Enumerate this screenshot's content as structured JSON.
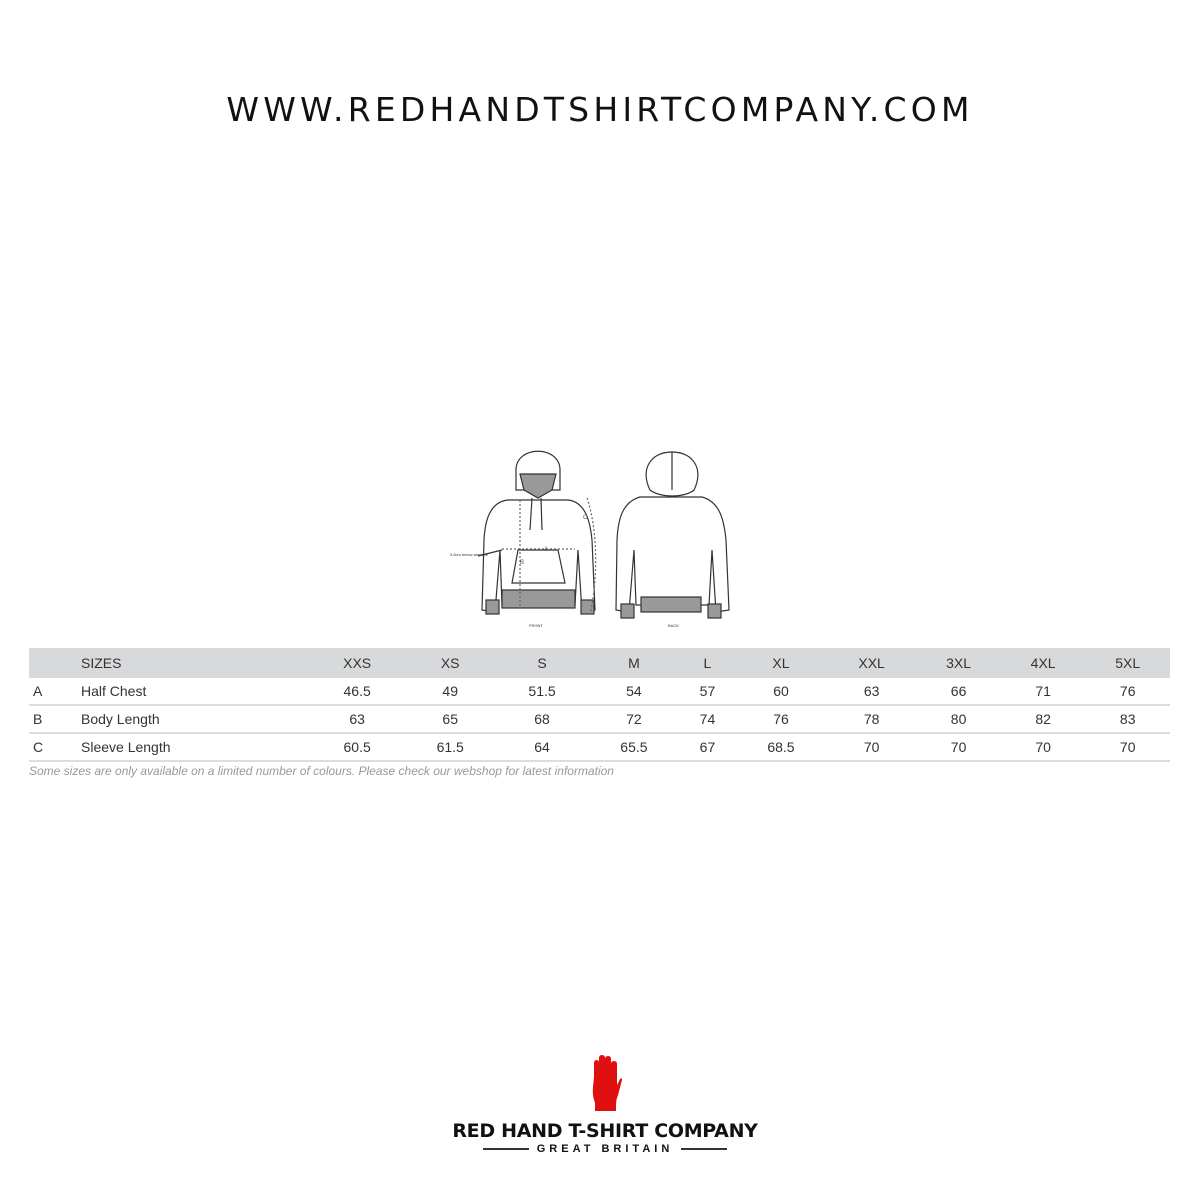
{
  "header": {
    "site_url": "WWW.REDHANDTSHIRTCOMPANY.COM"
  },
  "illustration": {
    "front_label": "FRONT",
    "back_label": "BACK",
    "armhole_note": "3.5cm below armhole",
    "marker_a": "A",
    "marker_b": "B",
    "marker_c": "C"
  },
  "table": {
    "header_label": "SIZES",
    "sizes": [
      "XXS",
      "XS",
      "S",
      "M",
      "L",
      "XL",
      "XXL",
      "3XL",
      "4XL",
      "5XL"
    ],
    "rows": [
      {
        "code": "A",
        "label": "Half Chest",
        "values": [
          "46.5",
          "49",
          "51.5",
          "54",
          "57",
          "60",
          "63",
          "66",
          "71",
          "76"
        ]
      },
      {
        "code": "B",
        "label": "Body Length",
        "values": [
          "63",
          "65",
          "68",
          "72",
          "74",
          "76",
          "78",
          "80",
          "82",
          "83"
        ]
      },
      {
        "code": "C",
        "label": "Sleeve Length",
        "values": [
          "60.5",
          "61.5",
          "64",
          "65.5",
          "67",
          "68.5",
          "70",
          "70",
          "70",
          "70"
        ]
      }
    ]
  },
  "note": "Some sizes are only available on a limited number of colours. Please check our webshop for latest information",
  "logo": {
    "name": "RED HAND T-SHIRT COMPANY",
    "tagline": "GREAT BRITAIN",
    "color": "#e01010"
  }
}
